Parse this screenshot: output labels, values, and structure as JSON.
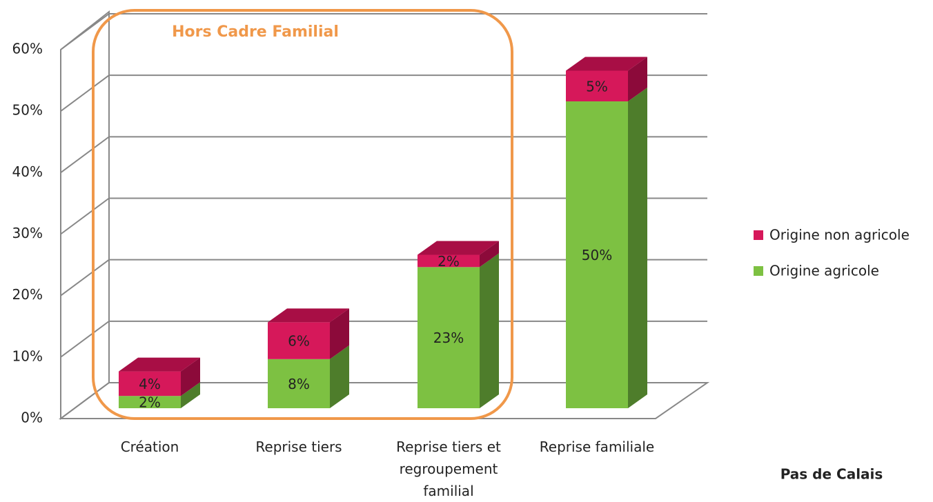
{
  "chart_data": {
    "type": "bar3d_stacked",
    "annotation": "Hors Cadre Familial",
    "footnote": "Pas de Calais",
    "categories": [
      "Création",
      "Reprise tiers",
      "Reprise tiers et regroupement familial",
      "Reprise familiale"
    ],
    "series": [
      {
        "name": "Origine agricole",
        "color": "#7dc142",
        "side_color": "#4e7d2b",
        "top_color": "#93d05a",
        "values": [
          2,
          8,
          23,
          50
        ],
        "value_labels": [
          "2%",
          "8%",
          "23%",
          "50%"
        ]
      },
      {
        "name": "Origine non agricole",
        "color": "#d6185a",
        "side_color": "#8c0a3a",
        "top_color": "#a80e45",
        "values": [
          4,
          6,
          2,
          5
        ],
        "value_labels": [
          "4%",
          "6%",
          "2%",
          "5%"
        ]
      }
    ],
    "ylim": [
      0,
      60
    ],
    "yticks": [
      {
        "value": 0,
        "label": "0%"
      },
      {
        "value": 10,
        "label": "10%"
      },
      {
        "value": 20,
        "label": "20%"
      },
      {
        "value": 30,
        "label": "30%"
      },
      {
        "value": 40,
        "label": "40%"
      },
      {
        "value": 50,
        "label": "50%"
      },
      {
        "value": 60,
        "label": "60%"
      }
    ],
    "grid": true,
    "legend": "right"
  }
}
